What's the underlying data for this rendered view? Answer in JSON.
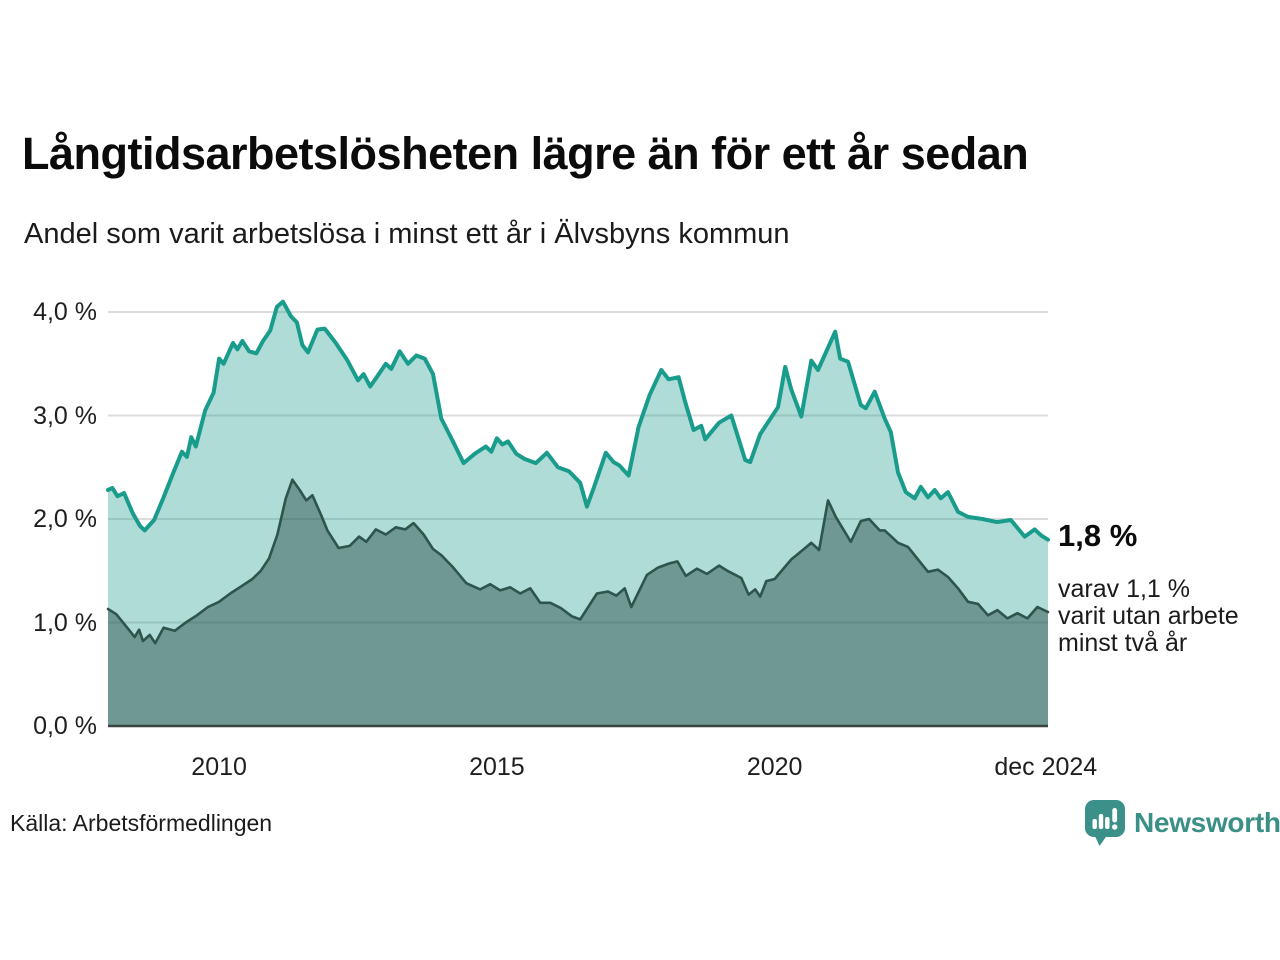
{
  "annotation": {
    "value_label": "1,8 %",
    "note_lines": [
      "varav 1,1 %",
      "varit utan arbete",
      "minst två år"
    ]
  },
  "footer": {
    "source": "Källa: Arbetsförmedlingen",
    "brand": "Newsworthy"
  },
  "colors": {
    "line_primary": "#1a9c8d",
    "fill_primary": "rgba(26,156,141,0.35)",
    "line_secondary": "#2e544c",
    "fill_secondary": "rgba(46,84,76,0.5)",
    "grid": "#dcdcdc",
    "axis": "#39433f",
    "brand_teal": "#3a8f87",
    "text": "#1b1b1b"
  },
  "chart_data": {
    "type": "area",
    "title": "Långtidsarbetslösheten lägre än för ett år sedan",
    "subtitle": "Andel som varit arbetslösa i minst ett år i Älvsbyns kommun",
    "xlabel": "",
    "ylabel": "",
    "grid": true,
    "legend_position": "none",
    "x_range": [
      2008,
      2024.92
    ],
    "y_range": [
      0,
      4
    ],
    "y_ticks": [
      {
        "value": 0,
        "label": "0,0 %"
      },
      {
        "value": 1,
        "label": "1,0 %"
      },
      {
        "value": 2,
        "label": "2,0 %"
      },
      {
        "value": 3,
        "label": "3,0 %"
      },
      {
        "value": 4,
        "label": "4,0 %"
      }
    ],
    "x_ticks": [
      {
        "value": 2010,
        "label": "2010"
      },
      {
        "value": 2015,
        "label": "2015"
      },
      {
        "value": 2020,
        "label": "2020"
      },
      {
        "value": 2024.88,
        "label": "dec 2024"
      }
    ],
    "series": [
      {
        "id": "minst-ett-ar",
        "name": "Andel som varit arbetslösa i minst ett år",
        "end_value_pct": 1.8,
        "color": "#1a9c8d",
        "fill": "rgba(26,156,141,0.35)",
        "points": [
          [
            2008.0,
            2.28
          ],
          [
            2008.08,
            2.3
          ],
          [
            2008.17,
            2.22
          ],
          [
            2008.29,
            2.25
          ],
          [
            2008.45,
            2.05
          ],
          [
            2008.58,
            1.93
          ],
          [
            2008.66,
            1.89
          ],
          [
            2008.83,
            1.99
          ],
          [
            2009.0,
            2.21
          ],
          [
            2009.17,
            2.44
          ],
          [
            2009.33,
            2.65
          ],
          [
            2009.42,
            2.6
          ],
          [
            2009.5,
            2.79
          ],
          [
            2009.58,
            2.7
          ],
          [
            2009.75,
            3.05
          ],
          [
            2009.9,
            3.22
          ],
          [
            2010.0,
            3.55
          ],
          [
            2010.08,
            3.5
          ],
          [
            2010.25,
            3.7
          ],
          [
            2010.33,
            3.64
          ],
          [
            2010.42,
            3.72
          ],
          [
            2010.54,
            3.62
          ],
          [
            2010.67,
            3.6
          ],
          [
            2010.79,
            3.72
          ],
          [
            2010.92,
            3.82
          ],
          [
            2011.04,
            4.05
          ],
          [
            2011.15,
            4.1
          ],
          [
            2011.29,
            3.96
          ],
          [
            2011.4,
            3.9
          ],
          [
            2011.5,
            3.68
          ],
          [
            2011.6,
            3.61
          ],
          [
            2011.77,
            3.83
          ],
          [
            2011.9,
            3.84
          ],
          [
            2012.1,
            3.7
          ],
          [
            2012.3,
            3.54
          ],
          [
            2012.5,
            3.34
          ],
          [
            2012.6,
            3.4
          ],
          [
            2012.72,
            3.28
          ],
          [
            2012.85,
            3.38
          ],
          [
            2013.0,
            3.5
          ],
          [
            2013.1,
            3.45
          ],
          [
            2013.25,
            3.62
          ],
          [
            2013.4,
            3.5
          ],
          [
            2013.55,
            3.58
          ],
          [
            2013.7,
            3.55
          ],
          [
            2013.85,
            3.4
          ],
          [
            2014.0,
            2.97
          ],
          [
            2014.2,
            2.76
          ],
          [
            2014.4,
            2.54
          ],
          [
            2014.6,
            2.63
          ],
          [
            2014.8,
            2.7
          ],
          [
            2014.9,
            2.65
          ],
          [
            2015.0,
            2.78
          ],
          [
            2015.1,
            2.72
          ],
          [
            2015.2,
            2.75
          ],
          [
            2015.35,
            2.63
          ],
          [
            2015.5,
            2.58
          ],
          [
            2015.7,
            2.54
          ],
          [
            2015.9,
            2.64
          ],
          [
            2016.0,
            2.57
          ],
          [
            2016.1,
            2.5
          ],
          [
            2016.3,
            2.46
          ],
          [
            2016.5,
            2.35
          ],
          [
            2016.62,
            2.12
          ],
          [
            2016.75,
            2.31
          ],
          [
            2016.96,
            2.64
          ],
          [
            2017.1,
            2.55
          ],
          [
            2017.2,
            2.52
          ],
          [
            2017.37,
            2.42
          ],
          [
            2017.55,
            2.89
          ],
          [
            2017.75,
            3.2
          ],
          [
            2017.96,
            3.44
          ],
          [
            2018.09,
            3.35
          ],
          [
            2018.27,
            3.37
          ],
          [
            2018.39,
            3.13
          ],
          [
            2018.54,
            2.86
          ],
          [
            2018.68,
            2.9
          ],
          [
            2018.75,
            2.77
          ],
          [
            2019.0,
            2.93
          ],
          [
            2019.22,
            3.0
          ],
          [
            2019.47,
            2.57
          ],
          [
            2019.56,
            2.55
          ],
          [
            2019.74,
            2.82
          ],
          [
            2020.06,
            3.08
          ],
          [
            2020.19,
            3.47
          ],
          [
            2020.3,
            3.25
          ],
          [
            2020.48,
            2.99
          ],
          [
            2020.66,
            3.53
          ],
          [
            2020.78,
            3.44
          ],
          [
            2021.09,
            3.81
          ],
          [
            2021.18,
            3.55
          ],
          [
            2021.32,
            3.52
          ],
          [
            2021.55,
            3.1
          ],
          [
            2021.64,
            3.07
          ],
          [
            2021.8,
            3.23
          ],
          [
            2021.98,
            2.97
          ],
          [
            2022.09,
            2.84
          ],
          [
            2022.22,
            2.45
          ],
          [
            2022.36,
            2.26
          ],
          [
            2022.52,
            2.2
          ],
          [
            2022.63,
            2.31
          ],
          [
            2022.76,
            2.21
          ],
          [
            2022.88,
            2.28
          ],
          [
            2022.99,
            2.2
          ],
          [
            2023.12,
            2.26
          ],
          [
            2023.3,
            2.07
          ],
          [
            2023.48,
            2.02
          ],
          [
            2023.74,
            2.0
          ],
          [
            2024.0,
            1.97
          ],
          [
            2024.25,
            1.99
          ],
          [
            2024.5,
            1.83
          ],
          [
            2024.68,
            1.9
          ],
          [
            2024.8,
            1.84
          ],
          [
            2024.92,
            1.8
          ]
        ]
      },
      {
        "id": "minst-tva-ar",
        "name": "varav utan arbete minst två år",
        "end_value_pct": 1.1,
        "color": "#2e544c",
        "fill": "rgba(46,84,76,0.5)",
        "points": [
          [
            2008.0,
            1.13
          ],
          [
            2008.15,
            1.08
          ],
          [
            2008.3,
            0.98
          ],
          [
            2008.48,
            0.86
          ],
          [
            2008.56,
            0.93
          ],
          [
            2008.63,
            0.82
          ],
          [
            2008.75,
            0.88
          ],
          [
            2008.85,
            0.8
          ],
          [
            2009.0,
            0.95
          ],
          [
            2009.2,
            0.92
          ],
          [
            2009.4,
            1.0
          ],
          [
            2009.6,
            1.07
          ],
          [
            2009.8,
            1.15
          ],
          [
            2010.0,
            1.2
          ],
          [
            2010.2,
            1.28
          ],
          [
            2010.4,
            1.35
          ],
          [
            2010.6,
            1.42
          ],
          [
            2010.75,
            1.5
          ],
          [
            2010.9,
            1.62
          ],
          [
            2011.05,
            1.85
          ],
          [
            2011.2,
            2.2
          ],
          [
            2011.32,
            2.38
          ],
          [
            2011.45,
            2.28
          ],
          [
            2011.57,
            2.18
          ],
          [
            2011.68,
            2.23
          ],
          [
            2011.85,
            2.02
          ],
          [
            2011.95,
            1.89
          ],
          [
            2012.15,
            1.72
          ],
          [
            2012.35,
            1.74
          ],
          [
            2012.52,
            1.83
          ],
          [
            2012.65,
            1.78
          ],
          [
            2012.82,
            1.9
          ],
          [
            2013.0,
            1.85
          ],
          [
            2013.18,
            1.92
          ],
          [
            2013.35,
            1.9
          ],
          [
            2013.5,
            1.96
          ],
          [
            2013.68,
            1.85
          ],
          [
            2013.85,
            1.71
          ],
          [
            2014.0,
            1.65
          ],
          [
            2014.2,
            1.54
          ],
          [
            2014.45,
            1.38
          ],
          [
            2014.7,
            1.32
          ],
          [
            2014.88,
            1.37
          ],
          [
            2015.06,
            1.31
          ],
          [
            2015.24,
            1.34
          ],
          [
            2015.42,
            1.28
          ],
          [
            2015.6,
            1.33
          ],
          [
            2015.78,
            1.19
          ],
          [
            2015.96,
            1.19
          ],
          [
            2016.15,
            1.14
          ],
          [
            2016.35,
            1.06
          ],
          [
            2016.5,
            1.03
          ],
          [
            2016.8,
            1.28
          ],
          [
            2017.0,
            1.3
          ],
          [
            2017.15,
            1.26
          ],
          [
            2017.3,
            1.33
          ],
          [
            2017.42,
            1.15
          ],
          [
            2017.7,
            1.46
          ],
          [
            2017.9,
            1.53
          ],
          [
            2018.1,
            1.57
          ],
          [
            2018.25,
            1.59
          ],
          [
            2018.4,
            1.45
          ],
          [
            2018.6,
            1.52
          ],
          [
            2018.78,
            1.47
          ],
          [
            2019.0,
            1.55
          ],
          [
            2019.15,
            1.5
          ],
          [
            2019.4,
            1.43
          ],
          [
            2019.53,
            1.27
          ],
          [
            2019.65,
            1.32
          ],
          [
            2019.74,
            1.25
          ],
          [
            2019.85,
            1.4
          ],
          [
            2020.0,
            1.42
          ],
          [
            2020.3,
            1.61
          ],
          [
            2020.55,
            1.72
          ],
          [
            2020.66,
            1.77
          ],
          [
            2020.8,
            1.7
          ],
          [
            2020.96,
            2.18
          ],
          [
            2021.1,
            2.02
          ],
          [
            2021.37,
            1.78
          ],
          [
            2021.55,
            1.98
          ],
          [
            2021.7,
            2.0
          ],
          [
            2021.89,
            1.89
          ],
          [
            2021.98,
            1.89
          ],
          [
            2022.22,
            1.77
          ],
          [
            2022.4,
            1.73
          ],
          [
            2022.58,
            1.61
          ],
          [
            2022.76,
            1.49
          ],
          [
            2022.94,
            1.51
          ],
          [
            2023.12,
            1.44
          ],
          [
            2023.3,
            1.33
          ],
          [
            2023.48,
            1.2
          ],
          [
            2023.66,
            1.18
          ],
          [
            2023.84,
            1.07
          ],
          [
            2024.01,
            1.12
          ],
          [
            2024.19,
            1.04
          ],
          [
            2024.37,
            1.09
          ],
          [
            2024.55,
            1.04
          ],
          [
            2024.73,
            1.15
          ],
          [
            2024.92,
            1.1
          ]
        ]
      }
    ]
  }
}
